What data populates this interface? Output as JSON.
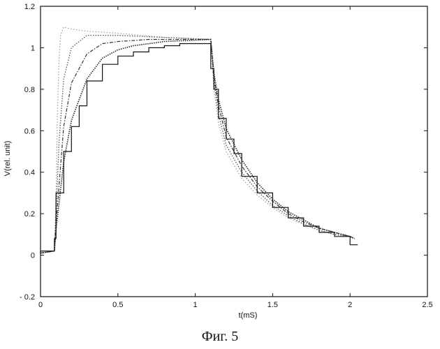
{
  "chart_data": {
    "type": "line",
    "title": "",
    "xlabel": "t(mS)",
    "ylabel": "V(rel. unit)",
    "xlim": [
      0,
      2.5
    ],
    "ylim": [
      -0.2,
      1.2
    ],
    "xticks": [
      0,
      0.5,
      1,
      1.5,
      2,
      2.5
    ],
    "xtick_labels": [
      "0",
      "0.5",
      "1",
      "1.5",
      "2",
      "2.5"
    ],
    "yticks": [
      -0.2,
      0,
      0.2,
      0.4,
      0.6,
      0.8,
      1,
      1.2
    ],
    "ytick_labels": [
      "- 0.2",
      "0",
      "0.2",
      "0.4",
      "0.6",
      "0.8",
      "1",
      "1.2"
    ],
    "grid": false,
    "legend": "none",
    "series": [
      {
        "style": "dotted-light",
        "x": [
          0,
          0.09,
          0.1,
          0.11,
          0.12,
          0.13,
          0.15,
          0.2,
          0.3,
          0.5,
          0.8,
          1.1,
          1.12,
          1.15,
          1.2,
          1.3,
          1.4,
          1.5,
          1.6,
          1.7,
          1.8,
          1.9,
          2.0,
          2.03
        ],
        "y": [
          0.01,
          0.02,
          0.3,
          0.7,
          0.95,
          1.06,
          1.1,
          1.09,
          1.08,
          1.07,
          1.05,
          1.04,
          0.8,
          0.64,
          0.5,
          0.37,
          0.29,
          0.23,
          0.18,
          0.15,
          0.12,
          0.1,
          0.09,
          0.08
        ]
      },
      {
        "style": "dotted",
        "x": [
          0,
          0.09,
          0.1,
          0.12,
          0.15,
          0.2,
          0.3,
          0.5,
          0.8,
          1.1,
          1.12,
          1.15,
          1.2,
          1.3,
          1.4,
          1.5,
          1.6,
          1.7,
          1.8,
          1.9,
          2.0,
          2.03
        ],
        "y": [
          0.01,
          0.02,
          0.2,
          0.55,
          0.85,
          1.0,
          1.06,
          1.06,
          1.05,
          1.04,
          0.84,
          0.68,
          0.53,
          0.4,
          0.31,
          0.24,
          0.19,
          0.15,
          0.12,
          0.1,
          0.09,
          0.08
        ]
      },
      {
        "style": "dash-dot",
        "x": [
          0,
          0.09,
          0.1,
          0.15,
          0.2,
          0.3,
          0.4,
          0.5,
          0.7,
          0.9,
          1.1,
          1.12,
          1.15,
          1.2,
          1.3,
          1.4,
          1.5,
          1.6,
          1.7,
          1.8,
          1.9,
          2.0,
          2.03
        ],
        "y": [
          0.01,
          0.02,
          0.15,
          0.62,
          0.83,
          0.97,
          1.02,
          1.03,
          1.04,
          1.04,
          1.04,
          0.86,
          0.72,
          0.57,
          0.43,
          0.33,
          0.26,
          0.2,
          0.16,
          0.13,
          0.11,
          0.09,
          0.08
        ]
      },
      {
        "style": "dense-dotted",
        "x": [
          0,
          0.09,
          0.1,
          0.15,
          0.2,
          0.3,
          0.4,
          0.5,
          0.6,
          0.8,
          1.1,
          1.12,
          1.15,
          1.2,
          1.3,
          1.4,
          1.5,
          1.6,
          1.7,
          1.8,
          1.9,
          2.0,
          2.03
        ],
        "y": [
          0.01,
          0.02,
          0.12,
          0.45,
          0.65,
          0.85,
          0.95,
          0.99,
          1.01,
          1.03,
          1.04,
          0.88,
          0.75,
          0.61,
          0.46,
          0.35,
          0.27,
          0.21,
          0.17,
          0.13,
          0.11,
          0.09,
          0.08
        ]
      },
      {
        "style": "solid",
        "x": [
          0,
          0.09,
          0.1,
          0.15,
          0.2,
          0.25,
          0.3,
          0.4,
          0.5,
          0.6,
          0.7,
          0.8,
          0.9,
          1.0,
          1.1,
          1.12,
          1.15,
          1.2,
          1.25,
          1.3,
          1.4,
          1.5,
          1.6,
          1.7,
          1.8,
          1.9,
          2.0,
          2.05
        ],
        "y": [
          0.01,
          0.02,
          0.08,
          0.3,
          0.5,
          0.62,
          0.72,
          0.84,
          0.92,
          0.96,
          0.98,
          1.0,
          1.01,
          1.02,
          1.02,
          0.9,
          0.8,
          0.66,
          0.56,
          0.49,
          0.38,
          0.3,
          0.23,
          0.18,
          0.14,
          0.11,
          0.09,
          0.05
        ]
      }
    ]
  },
  "caption": "Фиг. 5"
}
